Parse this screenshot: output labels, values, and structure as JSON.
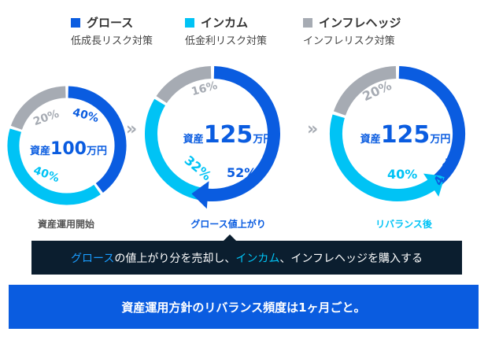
{
  "colors": {
    "growth": "#0a5ce0",
    "income": "#00c3f5",
    "inflation": "#a6abb3"
  },
  "legend": [
    {
      "title": "グロース",
      "sub": "低成長リスク対策"
    },
    {
      "title": "インカム",
      "sub": "低金利リスク対策"
    },
    {
      "title": "インフレヘッジ",
      "sub": "インフレリスク対策"
    }
  ],
  "charts": [
    {
      "asset_label": "資産",
      "amount": "100",
      "unit": "万円",
      "caption": "資産運用開始",
      "growth_pct": "40%",
      "income_pct": "40%",
      "inflation_pct": "20%",
      "values": {
        "growth": 40,
        "income": 40,
        "inflation": 20
      }
    },
    {
      "asset_label": "資産",
      "amount": "125",
      "unit": "万円",
      "caption": "グロース値上がり",
      "growth_pct": "52%",
      "income_pct": "32%",
      "inflation_pct": "16%",
      "values": {
        "growth": 52,
        "income": 32,
        "inflation": 16
      }
    },
    {
      "asset_label": "資産",
      "amount": "125",
      "unit": "万円",
      "caption": "リバランス後",
      "growth_pct": "40%",
      "income_pct": "40%",
      "inflation_pct": "20%",
      "values": {
        "growth": 40,
        "income": 40,
        "inflation": 20
      }
    }
  ],
  "chevron": "»",
  "tip": {
    "growth": "グロース",
    "t1": "の値上がり分を売却し、",
    "income": "インカム",
    "t2": "、インフレヘッジを購入する"
  },
  "banner": "資産運用方針のリバランス頻度は1ヶ月ごと。"
}
